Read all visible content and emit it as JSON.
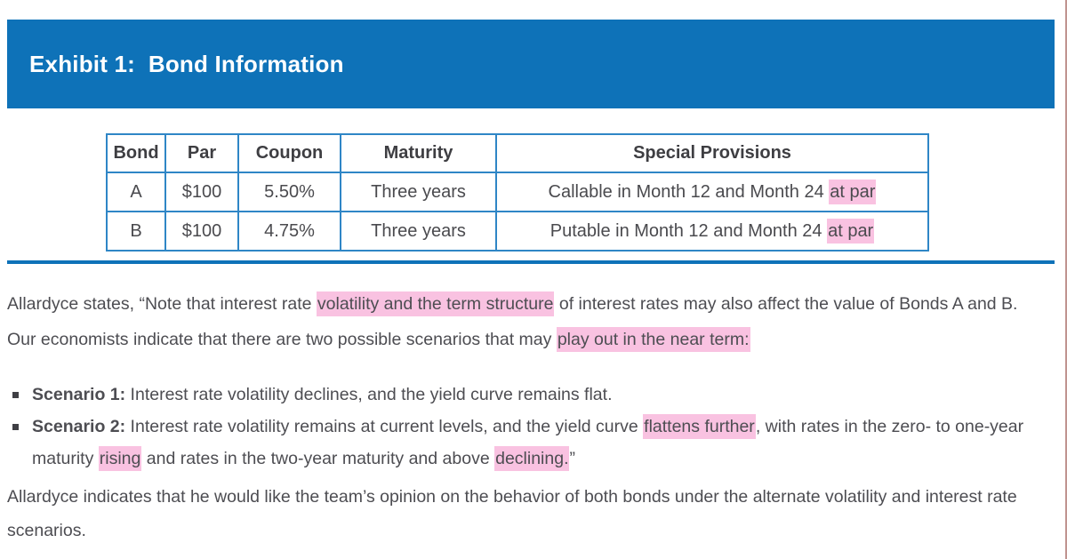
{
  "colors": {
    "accent-blue": "#0e72b8",
    "table-border": "#2f86c6",
    "highlight": "#f9c2e1",
    "text": "#4d4d52",
    "border-edge": "#c09490"
  },
  "header": {
    "title": "Exhibit 1:  Bond Information"
  },
  "table": {
    "columns": [
      "Bond",
      "Par",
      "Coupon",
      "Maturity",
      "Special Provisions"
    ],
    "rows": [
      {
        "bond": "A",
        "par": "$100",
        "coupon": "5.50%",
        "maturity": "Three years",
        "special": [
          {
            "text": "Callable in Month 12 and Month 24 "
          },
          {
            "text": "at par",
            "highlight": true
          }
        ]
      },
      {
        "bond": "B",
        "par": "$100",
        "coupon": "4.75%",
        "maturity": "Three years",
        "special": [
          {
            "text": "Putable in Month 12 and Month 24 "
          },
          {
            "text": "at par",
            "highlight": true
          }
        ]
      }
    ]
  },
  "paragraph1": {
    "segments": [
      {
        "text": "Allardyce states, “Note that interest rate "
      },
      {
        "text": "volatility and the term structure",
        "highlight": true
      },
      {
        "text": " of interest rates may also affect the value of Bonds A and B. Our economists indicate that there are two possible scenarios that may "
      },
      {
        "text": "play out in the near term:",
        "highlight": true
      }
    ]
  },
  "bullets": [
    {
      "segments": [
        {
          "text": "Scenario 1:",
          "bold": true
        },
        {
          "text": " Interest rate volatility declines, and the yield curve remains flat."
        }
      ]
    },
    {
      "segments": [
        {
          "text": "Scenario 2:",
          "bold": true
        },
        {
          "text": " Interest rate volatility remains at current levels, and the yield curve "
        },
        {
          "text": "flattens further",
          "highlight": true
        },
        {
          "text": ", with rates in the zero- to one-year maturity "
        },
        {
          "text": "rising",
          "highlight": true
        },
        {
          "text": " and rates in the two-year maturity and above "
        },
        {
          "text": "declining.",
          "highlight": true
        },
        {
          "text": "”"
        }
      ]
    }
  ],
  "paragraph2": {
    "text": "Allardyce indicates that he would like the team’s opinion on the behavior of both bonds under the alternate volatility and interest rate scenarios."
  }
}
